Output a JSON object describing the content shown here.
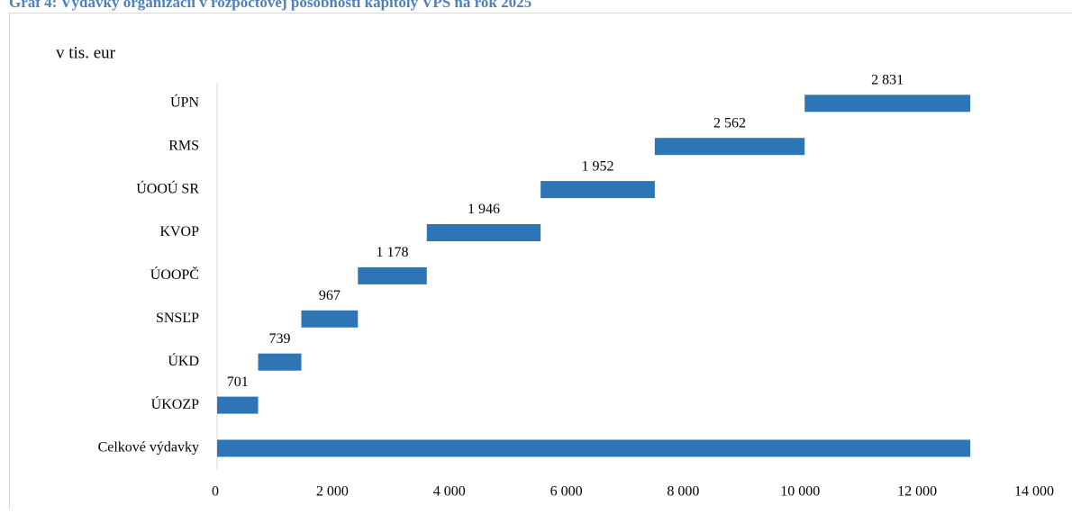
{
  "chart_data": {
    "type": "waterfall",
    "title": "Graf 4: Výdavky organizácií v rozpočtovej pôsobnosti kapitoly VPS na rok 2025",
    "unit_label": "v tis. eur",
    "categories": [
      "ÚKOZP",
      "ÚKD",
      "SNSĽP",
      "ÚOOPČ",
      "KVOP",
      "ÚOOÚ SR",
      "RMS",
      "ÚPN"
    ],
    "values": [
      701,
      739,
      967,
      1178,
      1946,
      1952,
      2562,
      2831
    ],
    "value_labels": [
      "701",
      "739",
      "967",
      "1 178",
      "1 946",
      "1 952",
      "2 562",
      "2 831"
    ],
    "total": {
      "category": "Celkové výdavky",
      "value": 12876
    },
    "color": "#2e75b6",
    "xlim": [
      0,
      14000
    ],
    "xticks": [
      0,
      {
        "value": 2000,
        "label": "2 000"
      },
      {
        "value": 4000,
        "label": "4 000"
      },
      {
        "value": 6000,
        "label": "6 000"
      },
      {
        "value": 8000,
        "label": "8 000"
      },
      {
        "value": 10000,
        "label": "10 000"
      },
      {
        "value": 12000,
        "label": "12 000"
      },
      {
        "value": 14000,
        "label": "14 000"
      }
    ]
  }
}
